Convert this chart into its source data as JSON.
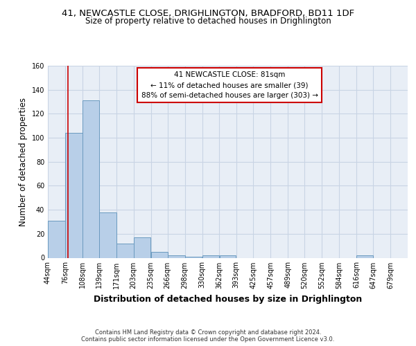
{
  "title_line1": "41, NEWCASTLE CLOSE, DRIGHLINGTON, BRADFORD, BD11 1DF",
  "title_line2": "Size of property relative to detached houses in Drighlington",
  "xlabel": "Distribution of detached houses by size in Drighlington",
  "ylabel": "Number of detached properties",
  "bar_values": [
    31,
    104,
    131,
    38,
    12,
    17,
    5,
    2,
    1,
    2,
    2,
    0,
    0,
    0,
    0,
    0,
    0,
    0,
    2,
    0,
    0
  ],
  "bin_edges": [
    44,
    76,
    108,
    139,
    171,
    203,
    235,
    266,
    298,
    330,
    362,
    393,
    425,
    457,
    489,
    520,
    552,
    584,
    616,
    647,
    679,
    711
  ],
  "x_tick_labels": [
    "44sqm",
    "76sqm",
    "108sqm",
    "139sqm",
    "171sqm",
    "203sqm",
    "235sqm",
    "266sqm",
    "298sqm",
    "330sqm",
    "362sqm",
    "393sqm",
    "425sqm",
    "457sqm",
    "489sqm",
    "520sqm",
    "552sqm",
    "584sqm",
    "616sqm",
    "647sqm",
    "679sqm"
  ],
  "bar_color": "#b8cfe8",
  "bar_edge_color": "#6a9abf",
  "grid_color": "#c8d4e4",
  "bg_color": "#e8eef6",
  "red_line_x": 81,
  "annotation_line1": "41 NEWCASTLE CLOSE: 81sqm",
  "annotation_line2": "← 11% of detached houses are smaller (39)",
  "annotation_line3": "88% of semi-detached houses are larger (303) →",
  "annotation_box_color": "#ffffff",
  "annotation_edge_color": "#cc0000",
  "ylim": [
    0,
    160
  ],
  "yticks": [
    0,
    20,
    40,
    60,
    80,
    100,
    120,
    140,
    160
  ],
  "footer_text": "Contains HM Land Registry data © Crown copyright and database right 2024.\nContains public sector information licensed under the Open Government Licence v3.0.",
  "title_fontsize": 9.5,
  "subtitle_fontsize": 8.5,
  "axis_label_fontsize": 8.5,
  "tick_fontsize": 7,
  "annotation_fontsize": 7.5,
  "footer_fontsize": 6
}
